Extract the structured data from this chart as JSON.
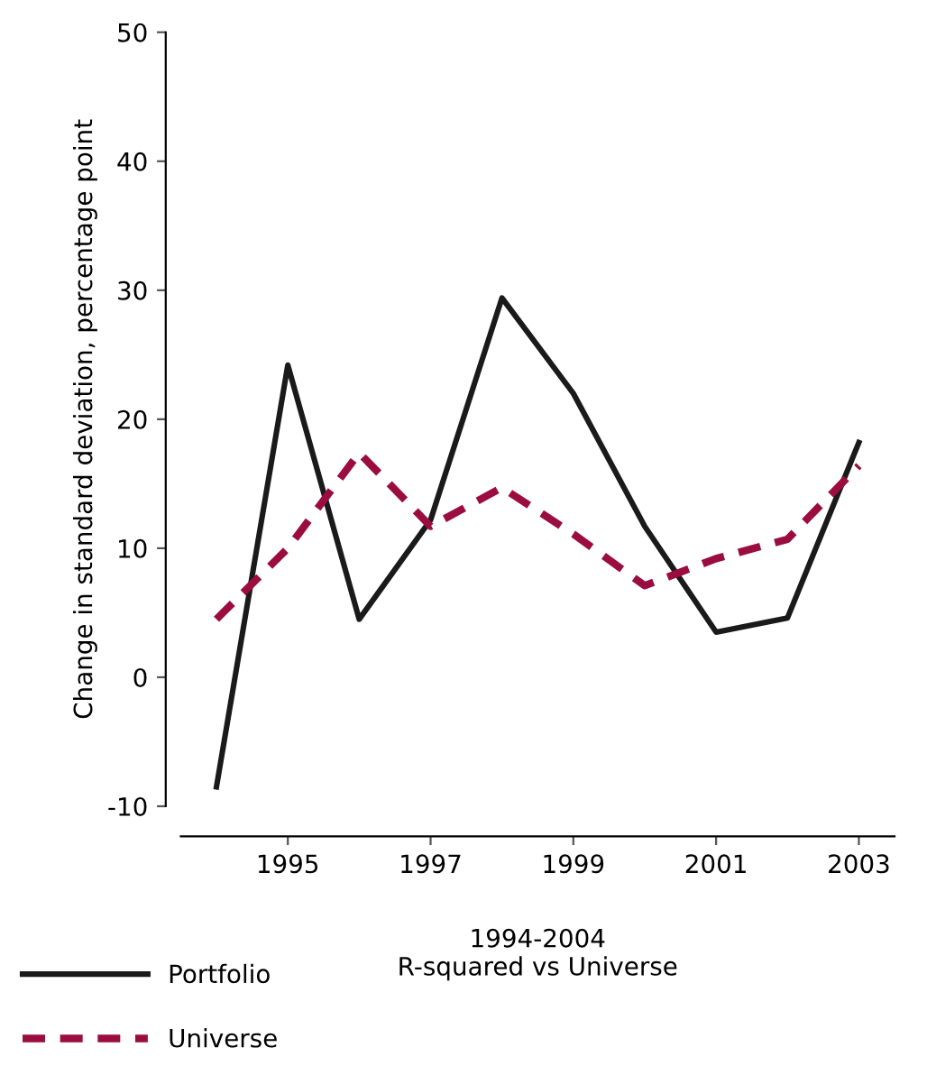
{
  "chart_data": {
    "type": "line",
    "xlabel": "1994-2004\nR-squared vs Universe",
    "ylabel": "Change in standard deviation, percentage point",
    "x": [
      1994,
      1995,
      1996,
      1997,
      1998,
      1999,
      2000,
      2001,
      2002,
      2003
    ],
    "series": [
      {
        "name": "Portfolio",
        "color": "#1a1a1a",
        "line_style": "solid",
        "values": [
          -8.5,
          24.2,
          4.5,
          12.2,
          29.4,
          22,
          11.7,
          3.5,
          4.6,
          18.2
        ]
      },
      {
        "name": "Universe",
        "color": "#9b0d3f",
        "line_style": "dashed",
        "values": [
          4.5,
          10,
          17.4,
          11.7,
          14.7,
          11.1,
          7.1,
          9.2,
          10.7,
          16.4
        ]
      }
    ],
    "xlim": [
      1993.5,
      2003.5
    ],
    "xticks": [
      1995,
      1997,
      1999,
      2001,
      2003
    ],
    "ylim": [
      -10,
      50
    ],
    "yticks": [
      -10,
      0,
      10,
      20,
      30,
      40,
      50
    ],
    "grid": false,
    "legend": "bottom left",
    "marker": "none"
  }
}
